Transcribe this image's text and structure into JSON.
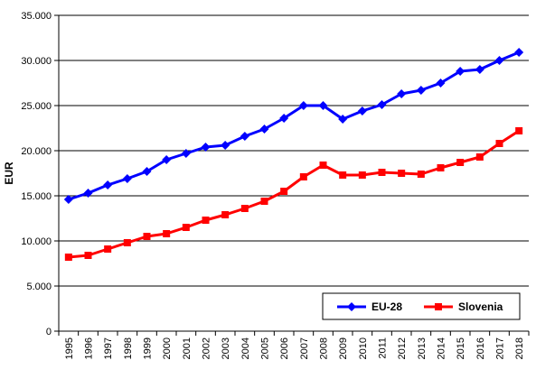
{
  "chart_data": {
    "type": "line",
    "title": "",
    "xlabel": "",
    "ylabel": "EUR",
    "ylim": [
      0,
      35000
    ],
    "yticks": [
      0,
      5000,
      10000,
      15000,
      20000,
      25000,
      30000,
      35000
    ],
    "ytick_labels": [
      "0",
      "5.000",
      "10.000",
      "15.000",
      "20.000",
      "25.000",
      "30.000",
      "35.000"
    ],
    "categories": [
      "1995",
      "1996",
      "1997",
      "1998",
      "1999",
      "2000",
      "2001",
      "2002",
      "2003",
      "2004",
      "2005",
      "2006",
      "2007",
      "2008",
      "2009",
      "2010",
      "2011",
      "2012",
      "2013",
      "2014",
      "2015",
      "2016",
      "2017",
      "2018"
    ],
    "grid": "horizontal",
    "legend_position": "bottom-right",
    "series": [
      {
        "name": "EU-28",
        "color": "#0000ff",
        "marker": "diamond",
        "values": [
          14600,
          15300,
          16200,
          16900,
          17700,
          19000,
          19700,
          20400,
          20600,
          21600,
          22400,
          23600,
          25000,
          25000,
          23500,
          24400,
          25100,
          26300,
          26700,
          27500,
          28800,
          29000,
          30000,
          30900
        ]
      },
      {
        "name": "Slovenia",
        "color": "#ff0000",
        "marker": "square",
        "values": [
          8200,
          8400,
          9100,
          9800,
          10500,
          10800,
          11500,
          12300,
          12900,
          13600,
          14400,
          15500,
          17100,
          18400,
          17300,
          17300,
          17600,
          17500,
          17400,
          18100,
          18700,
          19300,
          20800,
          22200
        ]
      }
    ]
  }
}
